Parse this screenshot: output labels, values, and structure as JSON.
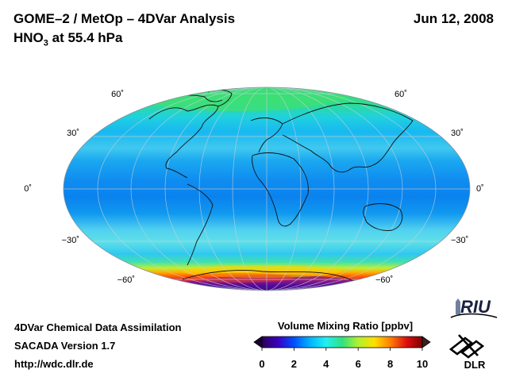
{
  "header": {
    "title_line1": "GOME–2 / MetOp – 4DVar Analysis",
    "title_line2_main": "HNO",
    "title_line2_sub": "3",
    "title_line2_rest": " at 55.4 hPa",
    "date": "Jun 12, 2008"
  },
  "map": {
    "projection": "Hammer / Mollweide",
    "lat_labels": [
      "60˚",
      "30˚",
      "0˚",
      "−30˚",
      "−60˚"
    ],
    "lat_values": [
      60,
      30,
      0,
      -30,
      -60
    ]
  },
  "colorbar": {
    "title": "Volume Mixing Ratio [ppbv]",
    "ticks": [
      "0",
      "2",
      "4",
      "6",
      "8",
      "10"
    ],
    "tick_values": [
      0,
      2,
      4,
      6,
      8,
      10
    ],
    "min": 0,
    "max": 10,
    "colors": [
      "#2a0055",
      "#3a00c0",
      "#0050ff",
      "#00b4ff",
      "#20f0f0",
      "#30e080",
      "#b0f030",
      "#ffe000",
      "#ff8000",
      "#e01010",
      "#800000"
    ]
  },
  "footer": {
    "line1": "4DVar Chemical Data Assimilation",
    "line2": "SACADA Version 1.7",
    "line3": "http://wdc.dlr.de"
  },
  "logos": {
    "riu": "RIU",
    "dlr": "DLR"
  }
}
